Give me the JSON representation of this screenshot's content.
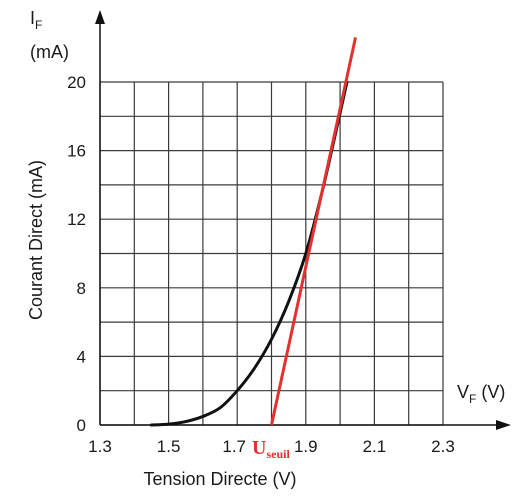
{
  "chart_data": {
    "type": "line",
    "x_unit_label": "V",
    "x_symbol": "V",
    "x_sub": "F",
    "y_symbol": "I",
    "y_sub": "F",
    "y_unit": "(mA)",
    "xlabel": "Tension Directe (V)",
    "ylabel": "Courant Direct   (mA)",
    "xlim": [
      1.3,
      2.3
    ],
    "ylim": [
      0,
      20
    ],
    "x_ticks": [
      "1.3",
      "1.5",
      "1.7",
      "1.9",
      "2.1",
      "2.3"
    ],
    "y_ticks": [
      "0",
      "4",
      "8",
      "12",
      "16",
      "20"
    ],
    "grid": true,
    "grid_step_x": 0.1,
    "grid_step_y": 2,
    "series": [
      {
        "color": "#111111",
        "x": [
          1.45,
          1.5,
          1.55,
          1.6,
          1.65,
          1.7,
          1.75,
          1.8,
          1.85,
          1.9,
          1.95,
          2.0,
          2.02
        ],
        "y": [
          0,
          0.05,
          0.2,
          0.5,
          1.0,
          2.0,
          3.3,
          5.0,
          7.2,
          10.0,
          13.8,
          18.2,
          20.0
        ]
      }
    ],
    "tangent": {
      "color": "#e53030",
      "x": [
        1.8,
        2.045
      ],
      "y": [
        0,
        22.6
      ]
    },
    "annotation": {
      "main": "U",
      "sub": "seuil",
      "color": "#e53030"
    }
  }
}
